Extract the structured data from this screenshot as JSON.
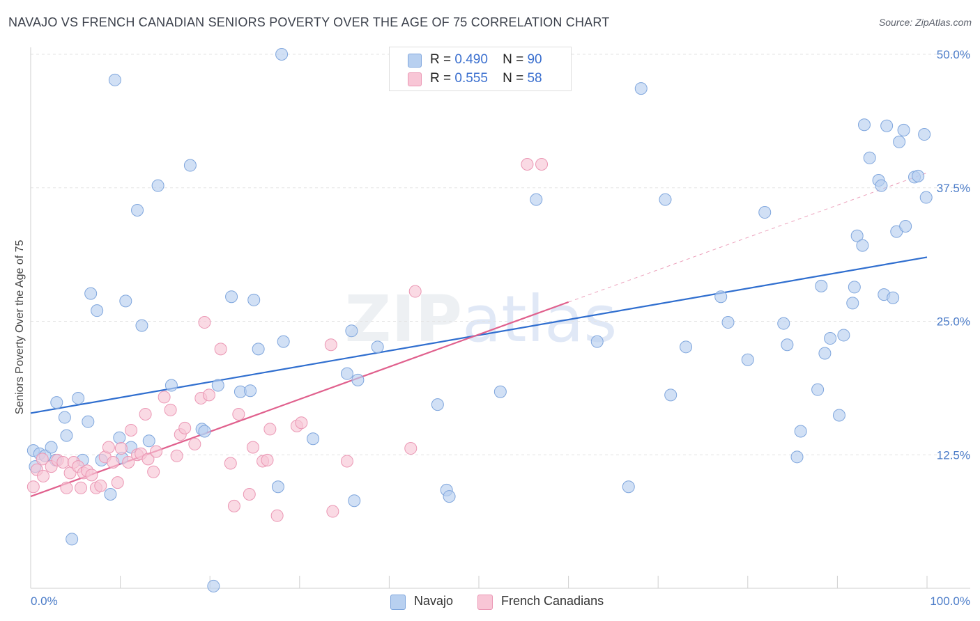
{
  "title": "NAVAJO VS FRENCH CANADIAN SENIORS POVERTY OVER THE AGE OF 75 CORRELATION CHART",
  "source": "Source: ZipAtlas.com",
  "watermark": "ZIPatlas",
  "legend": {
    "rows": [
      {
        "r_label": "R =",
        "r_value": "0.490",
        "n_label": "N =",
        "n_value": "90"
      },
      {
        "r_label": "R =",
        "r_value": "0.555",
        "n_label": "N =",
        "n_value": "58"
      }
    ]
  },
  "bottom_legend": [
    "Navajo",
    "French Canadians"
  ],
  "colors": {
    "navajo_fill": "#b8d0f0",
    "navajo_stroke": "#7fa6dd",
    "navajo_line": "#2f6ecf",
    "french_fill": "#f8c6d6",
    "french_stroke": "#eb97b4",
    "french_line": "#e0608d",
    "grid": "#e3e3e3",
    "tick_text": "#4a7bc8"
  },
  "chart_data": {
    "type": "scatter",
    "title": "NAVAJO VS FRENCH CANADIAN SENIORS POVERTY OVER THE AGE OF 75 CORRELATION CHART",
    "xlabel": "",
    "ylabel": "Seniors Poverty Over the Age of 75",
    "xlim": [
      0,
      100
    ],
    "ylim": [
      0,
      50
    ],
    "x_tick_labels": [
      "0.0%",
      "100.0%"
    ],
    "y_ticks": [
      12.5,
      25.0,
      37.5,
      50.0
    ],
    "y_tick_labels": [
      "12.5%",
      "25.0%",
      "37.5%",
      "50.0%"
    ],
    "grid": true,
    "legend_position": "top-center",
    "series": [
      {
        "name": "Navajo",
        "r": 0.49,
        "n": 90,
        "trend": {
          "x": [
            0,
            100
          ],
          "y": [
            16.4,
            31.0
          ],
          "style": "solid"
        },
        "points": [
          [
            0.3,
            12.9
          ],
          [
            0.5,
            11.4
          ],
          [
            1.0,
            12.6
          ],
          [
            1.6,
            12.4
          ],
          [
            2.3,
            13.2
          ],
          [
            2.8,
            12.0
          ],
          [
            2.9,
            17.4
          ],
          [
            3.8,
            16.0
          ],
          [
            4.0,
            14.3
          ],
          [
            4.6,
            4.6
          ],
          [
            5.3,
            17.8
          ],
          [
            5.8,
            12.0
          ],
          [
            6.4,
            15.6
          ],
          [
            6.7,
            27.6
          ],
          [
            7.4,
            26.0
          ],
          [
            7.9,
            12.0
          ],
          [
            8.9,
            8.8
          ],
          [
            9.4,
            47.6
          ],
          [
            9.9,
            14.1
          ],
          [
            10.2,
            12.2
          ],
          [
            10.6,
            26.9
          ],
          [
            11.2,
            13.2
          ],
          [
            11.9,
            35.4
          ],
          [
            12.4,
            24.6
          ],
          [
            13.2,
            13.8
          ],
          [
            14.2,
            37.7
          ],
          [
            15.7,
            19.0
          ],
          [
            17.8,
            39.6
          ],
          [
            19.1,
            14.9
          ],
          [
            19.4,
            14.7
          ],
          [
            20.4,
            0.2
          ],
          [
            20.9,
            19.0
          ],
          [
            22.4,
            27.3
          ],
          [
            23.4,
            18.4
          ],
          [
            24.5,
            18.5
          ],
          [
            24.9,
            27.0
          ],
          [
            25.4,
            22.4
          ],
          [
            27.6,
            9.5
          ],
          [
            28.2,
            23.1
          ],
          [
            28.0,
            50.0
          ],
          [
            31.5,
            14.0
          ],
          [
            35.3,
            20.1
          ],
          [
            35.8,
            24.1
          ],
          [
            36.1,
            8.2
          ],
          [
            36.5,
            19.5
          ],
          [
            38.7,
            22.6
          ],
          [
            45.4,
            17.2
          ],
          [
            46.4,
            9.2
          ],
          [
            46.7,
            8.6
          ],
          [
            52.4,
            18.4
          ],
          [
            56.4,
            36.4
          ],
          [
            63.2,
            23.1
          ],
          [
            66.7,
            9.5
          ],
          [
            68.1,
            46.8
          ],
          [
            70.8,
            36.4
          ],
          [
            71.4,
            18.1
          ],
          [
            73.1,
            22.6
          ],
          [
            77.0,
            27.3
          ],
          [
            77.8,
            24.9
          ],
          [
            80.0,
            21.4
          ],
          [
            81.9,
            35.2
          ],
          [
            84.0,
            24.8
          ],
          [
            84.4,
            22.8
          ],
          [
            85.5,
            12.3
          ],
          [
            85.9,
            14.7
          ],
          [
            87.8,
            18.6
          ],
          [
            88.2,
            28.3
          ],
          [
            88.6,
            22.0
          ],
          [
            89.2,
            23.4
          ],
          [
            90.2,
            16.2
          ],
          [
            90.7,
            23.7
          ],
          [
            91.7,
            26.7
          ],
          [
            91.9,
            28.2
          ],
          [
            92.2,
            33.0
          ],
          [
            92.8,
            32.1
          ],
          [
            93.0,
            43.4
          ],
          [
            93.6,
            40.3
          ],
          [
            94.6,
            38.2
          ],
          [
            94.9,
            37.7
          ],
          [
            95.2,
            27.5
          ],
          [
            95.5,
            43.3
          ],
          [
            96.2,
            27.2
          ],
          [
            96.6,
            33.4
          ],
          [
            96.9,
            41.8
          ],
          [
            97.4,
            42.9
          ],
          [
            97.6,
            33.9
          ],
          [
            98.6,
            38.5
          ],
          [
            99.0,
            38.6
          ],
          [
            99.7,
            42.5
          ],
          [
            99.9,
            36.6
          ]
        ]
      },
      {
        "name": "French Canadians",
        "r": 0.555,
        "n": 58,
        "trend": {
          "x": [
            0,
            60
          ],
          "y": [
            8.6,
            26.8
          ],
          "style": "solid",
          "extension": {
            "x": [
              60,
              100
            ],
            "y": [
              26.8,
              38.9
            ],
            "style": "dashed"
          }
        },
        "points": [
          [
            0.3,
            9.5
          ],
          [
            0.7,
            11.1
          ],
          [
            1.3,
            12.1
          ],
          [
            1.4,
            10.5
          ],
          [
            2.3,
            11.4
          ],
          [
            3.0,
            12.0
          ],
          [
            3.6,
            11.8
          ],
          [
            4.0,
            9.4
          ],
          [
            4.4,
            10.8
          ],
          [
            4.8,
            11.8
          ],
          [
            5.3,
            11.4
          ],
          [
            5.6,
            9.4
          ],
          [
            5.9,
            10.8
          ],
          [
            6.3,
            11.0
          ],
          [
            6.8,
            10.6
          ],
          [
            7.3,
            9.4
          ],
          [
            7.8,
            9.6
          ],
          [
            8.3,
            12.3
          ],
          [
            8.7,
            13.2
          ],
          [
            9.2,
            11.8
          ],
          [
            9.7,
            9.9
          ],
          [
            10.1,
            13.1
          ],
          [
            10.9,
            11.8
          ],
          [
            11.2,
            14.8
          ],
          [
            11.9,
            12.5
          ],
          [
            12.3,
            12.6
          ],
          [
            12.8,
            16.3
          ],
          [
            13.1,
            12.1
          ],
          [
            13.7,
            10.9
          ],
          [
            14.0,
            12.8
          ],
          [
            14.9,
            17.9
          ],
          [
            15.6,
            16.7
          ],
          [
            16.3,
            12.4
          ],
          [
            16.7,
            14.4
          ],
          [
            17.2,
            15.0
          ],
          [
            18.3,
            13.5
          ],
          [
            19.0,
            17.8
          ],
          [
            19.4,
            24.9
          ],
          [
            19.9,
            18.1
          ],
          [
            21.2,
            22.4
          ],
          [
            22.3,
            11.7
          ],
          [
            22.7,
            7.7
          ],
          [
            23.2,
            16.3
          ],
          [
            24.4,
            8.8
          ],
          [
            24.8,
            13.2
          ],
          [
            25.9,
            11.9
          ],
          [
            26.4,
            12.0
          ],
          [
            26.7,
            14.9
          ],
          [
            27.5,
            6.8
          ],
          [
            29.7,
            15.2
          ],
          [
            30.2,
            15.5
          ],
          [
            33.5,
            22.8
          ],
          [
            33.7,
            7.2
          ],
          [
            35.3,
            11.9
          ],
          [
            42.4,
            13.1
          ],
          [
            42.9,
            27.8
          ],
          [
            55.4,
            39.7
          ],
          [
            57.0,
            39.7
          ]
        ]
      }
    ]
  }
}
